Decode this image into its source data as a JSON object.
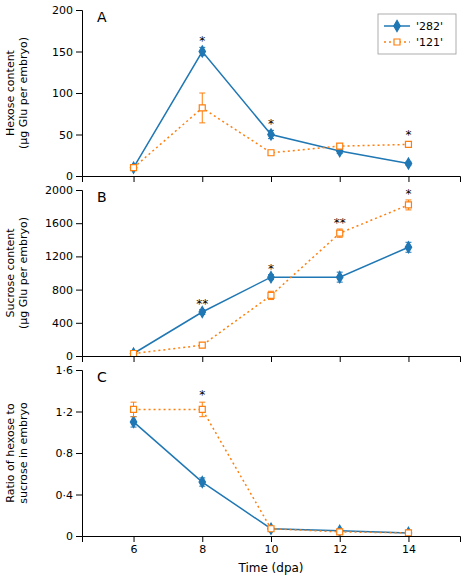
{
  "chart_data": [
    {
      "type": "line",
      "title": "A",
      "x": [
        6,
        8,
        10,
        12,
        14
      ],
      "xlim": [
        4.5,
        15.5
      ],
      "xticks": [
        6,
        8,
        10,
        12,
        14
      ],
      "ylim": [
        0,
        200
      ],
      "yticks": [
        0,
        50,
        100,
        150,
        200
      ],
      "ylabel": "Hexose content\n(µg Glu per embryo)",
      "tick_labels": "y",
      "grid": false,
      "legend": "upper right",
      "series": [
        {
          "name": "'282'",
          "values": [
            10,
            150,
            50,
            30,
            15
          ],
          "error": [
            2,
            5,
            5,
            3,
            2
          ],
          "marker": "diamond",
          "line_style": "solid"
        },
        {
          "name": "'121'",
          "values": [
            10,
            82,
            28,
            36,
            38
          ],
          "error": [
            2,
            18,
            3,
            3,
            3
          ],
          "marker": "open-square",
          "line_style": "dotted"
        }
      ],
      "annotations": [
        {
          "x": 8,
          "y": 158,
          "text": "*"
        },
        {
          "x": 10,
          "y": 58,
          "text": "*"
        },
        {
          "x": 14,
          "y": 44,
          "text": "*"
        }
      ]
    },
    {
      "type": "line",
      "title": "B",
      "x": [
        6,
        8,
        10,
        12,
        14
      ],
      "xlim": [
        4.5,
        15.5
      ],
      "xticks": [
        6,
        8,
        10,
        12,
        14
      ],
      "ylim": [
        0,
        2000
      ],
      "yticks": [
        0,
        400,
        800,
        1200,
        1600,
        2000
      ],
      "ylabel": "Sucrose content\n(µg Glu per embryo)",
      "tick_labels": "y",
      "grid": false,
      "series": [
        {
          "values": [
            30,
            530,
            950,
            950,
            1310
          ],
          "error": [
            10,
            30,
            30,
            60,
            60
          ],
          "marker": "diamond",
          "line_style": "solid"
        },
        {
          "values": [
            30,
            130,
            730,
            1480,
            1820
          ],
          "error": [
            10,
            30,
            50,
            50,
            60
          ],
          "marker": "open-square",
          "line_style": "dotted"
        }
      ],
      "annotations": [
        {
          "x": 8,
          "y": 575,
          "text": "**"
        },
        {
          "x": 10,
          "y": 995,
          "text": "*"
        },
        {
          "x": 12,
          "y": 1555,
          "text": "**"
        },
        {
          "x": 14,
          "y": 1900,
          "text": "*"
        }
      ]
    },
    {
      "type": "line",
      "title": "C",
      "x": [
        6,
        8,
        10,
        12,
        14
      ],
      "xlim": [
        4.5,
        15.5
      ],
      "xticks": [
        6,
        8,
        10,
        12,
        14
      ],
      "ylim": [
        0,
        1.6
      ],
      "yticks": [
        0,
        {
          "value": 0.4,
          "label": "0·4"
        },
        {
          "value": 0.8,
          "label": "0·8"
        },
        {
          "value": 1.2,
          "label": "1·2"
        },
        {
          "value": 1.6,
          "label": "1·6"
        }
      ],
      "ylabel": "Ratio of hexose to\nsucrose in embryo",
      "xlabel": "Time (dpa)",
      "grid": false,
      "series": [
        {
          "values": [
            1.1,
            0.52,
            0.07,
            0.05,
            0.03
          ],
          "error": [
            0.05,
            0.04,
            0.02,
            0.01,
            0.01
          ],
          "marker": "diamond",
          "line_style": "solid"
        },
        {
          "values": [
            1.22,
            1.22,
            0.07,
            0.04,
            0.03
          ],
          "error": [
            0.07,
            0.07,
            0.02,
            0.01,
            0.01
          ],
          "marker": "open-square",
          "line_style": "dotted"
        }
      ],
      "annotations": [
        {
          "x": 8,
          "y": 1.32,
          "text": "*"
        }
      ]
    }
  ]
}
